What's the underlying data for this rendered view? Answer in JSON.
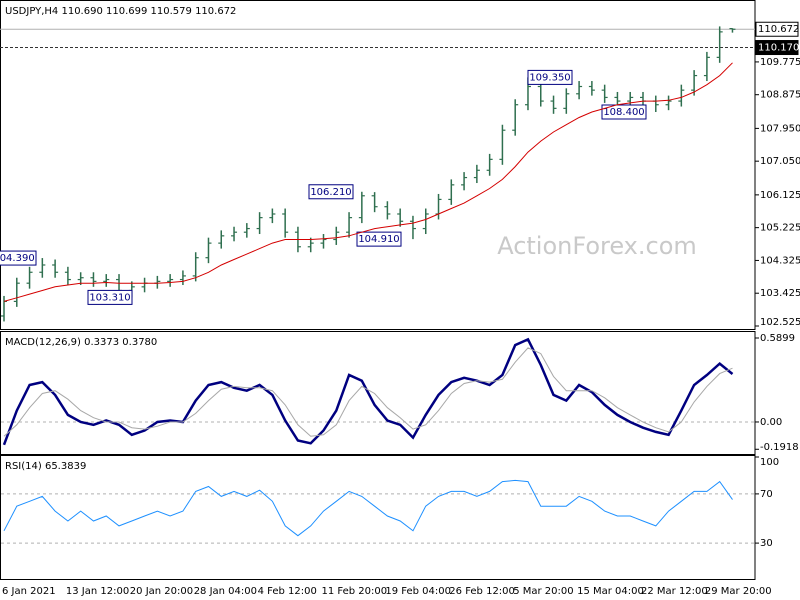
{
  "chart_data": [
    {
      "type": "ohlc",
      "title": "USDJPY,H4 110.690 110.699 110.579 110.672",
      "color": "#2f6f4f",
      "open": [
        102.8,
        103.2,
        103.7,
        104.0,
        104.2,
        104.0,
        103.8,
        103.85,
        103.75,
        103.8,
        103.5,
        103.6,
        103.7,
        103.75,
        103.8,
        103.9,
        104.4,
        104.8,
        105.0,
        105.1,
        105.2,
        105.5,
        105.6,
        105.1,
        104.7,
        104.8,
        104.9,
        105.1,
        105.5,
        106.1,
        105.8,
        105.6,
        105.4,
        105.2,
        105.6,
        106.0,
        106.4,
        106.6,
        106.8,
        107.1,
        107.9,
        108.6,
        109.1,
        108.7,
        108.5,
        108.9,
        109.1,
        109.0,
        108.8,
        108.7,
        108.8,
        108.7,
        108.6,
        108.7,
        109.0,
        109.4,
        109.9,
        110.69
      ],
      "high": [
        103.35,
        103.85,
        104.15,
        104.39,
        104.35,
        104.15,
        104.0,
        104.0,
        103.95,
        103.95,
        103.75,
        103.85,
        103.9,
        103.95,
        104.05,
        104.55,
        104.95,
        105.15,
        105.25,
        105.35,
        105.65,
        105.75,
        105.75,
        105.25,
        104.95,
        105.05,
        105.25,
        105.65,
        106.21,
        106.2,
        105.95,
        105.75,
        105.55,
        105.75,
        106.15,
        106.55,
        106.75,
        106.95,
        107.25,
        108.05,
        108.75,
        109.35,
        109.25,
        108.85,
        109.05,
        109.25,
        109.25,
        109.15,
        108.95,
        108.95,
        108.95,
        108.85,
        108.85,
        109.15,
        109.55,
        110.05,
        110.75,
        110.699
      ],
      "low": [
        102.65,
        103.05,
        103.55,
        103.85,
        103.85,
        103.65,
        103.65,
        103.6,
        103.6,
        103.35,
        103.31,
        103.45,
        103.55,
        103.6,
        103.65,
        103.75,
        104.25,
        104.65,
        104.85,
        104.95,
        105.05,
        105.35,
        104.95,
        104.55,
        104.55,
        104.65,
        104.75,
        104.95,
        105.35,
        105.65,
        105.45,
        105.25,
        104.91,
        105.05,
        105.45,
        105.85,
        106.25,
        106.45,
        106.65,
        106.95,
        107.75,
        108.45,
        108.55,
        108.35,
        108.35,
        108.75,
        108.85,
        108.65,
        108.55,
        108.55,
        108.55,
        108.4,
        108.45,
        108.55,
        108.85,
        109.25,
        109.75,
        110.579
      ],
      "close": [
        103.2,
        103.7,
        104.0,
        104.2,
        104.0,
        103.8,
        103.85,
        103.75,
        103.8,
        103.5,
        103.6,
        103.7,
        103.75,
        103.8,
        103.9,
        104.4,
        104.8,
        105.0,
        105.1,
        105.2,
        105.5,
        105.6,
        105.1,
        104.7,
        104.8,
        104.9,
        105.1,
        105.5,
        106.1,
        105.8,
        105.6,
        105.4,
        105.2,
        105.6,
        106.0,
        106.4,
        106.6,
        106.8,
        107.1,
        107.9,
        108.6,
        109.1,
        108.7,
        108.5,
        108.9,
        109.1,
        109.0,
        108.8,
        108.7,
        108.8,
        108.7,
        108.6,
        108.7,
        109.0,
        109.4,
        109.9,
        110.6,
        110.672
      ],
      "series": [
        {
          "color": "#d40000",
          "values": [
            103.2,
            103.3,
            103.4,
            103.5,
            103.6,
            103.65,
            103.7,
            103.7,
            103.72,
            103.7,
            103.7,
            103.7,
            103.7,
            103.72,
            103.75,
            103.85,
            104.0,
            104.2,
            104.35,
            104.5,
            104.65,
            104.8,
            104.9,
            104.9,
            104.9,
            104.92,
            104.95,
            105.0,
            105.1,
            105.2,
            105.25,
            105.3,
            105.35,
            105.45,
            105.6,
            105.75,
            105.9,
            106.1,
            106.3,
            106.55,
            106.9,
            107.3,
            107.6,
            107.85,
            108.05,
            108.25,
            108.4,
            108.5,
            108.6,
            108.65,
            108.7,
            108.7,
            108.72,
            108.8,
            108.95,
            109.15,
            109.4,
            109.75
          ]
        }
      ],
      "ylim": [
        102.415,
        111.42
      ],
      "yticks": [
        109.775,
        108.875,
        {
          "value": 107.95,
          "label": "107.950"
        },
        {
          "value": 107.05,
          "label": "107.050"
        },
        106.125,
        105.225,
        104.325,
        103.425,
        102.525
      ],
      "annotations": [
        {
          "value": 104.39,
          "label": "104.390"
        },
        {
          "value": 103.31,
          "label": "103.310"
        },
        {
          "value": 106.21,
          "label": "106.210"
        },
        {
          "value": 104.91,
          "label": "104.910"
        },
        {
          "value": 109.35,
          "label": "109.350"
        },
        {
          "value": 108.4,
          "label": "108.400"
        }
      ],
      "price_lines": [
        {
          "value": 110.672,
          "label": "110.672"
        },
        {
          "value": 110.17,
          "label": "110.170"
        }
      ],
      "watermark": "ActionForex.com"
    },
    {
      "type": "line",
      "title": "MACD(12,26,9) 0.3373 0.3780",
      "series": [
        {
          "color": "#000080",
          "values": [
            -0.16,
            0.08,
            0.26,
            0.28,
            0.19,
            0.05,
            0.0,
            -0.02,
            0.01,
            -0.02,
            -0.09,
            -0.06,
            0.0,
            0.01,
            0.0,
            0.15,
            0.26,
            0.28,
            0.24,
            0.22,
            0.26,
            0.19,
            0.01,
            -0.13,
            -0.15,
            -0.06,
            0.08,
            0.33,
            0.29,
            0.12,
            0.01,
            -0.02,
            -0.11,
            0.05,
            0.19,
            0.28,
            0.31,
            0.29,
            0.26,
            0.33,
            0.54,
            0.58,
            0.4,
            0.19,
            0.15,
            0.26,
            0.21,
            0.12,
            0.05,
            0.0,
            -0.04,
            -0.07,
            -0.09,
            0.08,
            0.26,
            0.33,
            0.41,
            0.3373
          ]
        },
        {
          "color": "#a8a8a8",
          "values": [
            -0.1,
            -0.02,
            0.1,
            0.2,
            0.22,
            0.16,
            0.08,
            0.03,
            0.0,
            0.0,
            -0.04,
            -0.05,
            -0.03,
            0.0,
            0.0,
            0.06,
            0.15,
            0.23,
            0.25,
            0.24,
            0.24,
            0.22,
            0.12,
            -0.02,
            -0.1,
            -0.09,
            -0.02,
            0.15,
            0.25,
            0.2,
            0.1,
            0.03,
            -0.05,
            -0.02,
            0.08,
            0.2,
            0.27,
            0.29,
            0.28,
            0.3,
            0.42,
            0.52,
            0.48,
            0.32,
            0.22,
            0.22,
            0.22,
            0.17,
            0.1,
            0.05,
            0.0,
            -0.04,
            -0.07,
            0.0,
            0.14,
            0.25,
            0.34,
            0.378
          ]
        }
      ],
      "ylim": [
        -0.232,
        0.625
      ],
      "yticks": [
        0.5899,
        {
          "value": 0,
          "label": "0.00"
        },
        -0.1918
      ],
      "levels": [
        0
      ]
    },
    {
      "type": "line",
      "title": "RSI(14) 65.3839",
      "series": [
        {
          "color": "#1e90ff",
          "values": [
            40,
            60,
            64,
            68,
            56,
            48,
            56,
            48,
            52,
            44,
            48,
            52,
            56,
            52,
            56,
            72,
            76,
            68,
            72,
            68,
            73,
            64,
            44,
            36,
            44,
            56,
            64,
            72,
            68,
            60,
            52,
            48,
            40,
            60,
            68,
            72,
            72,
            68,
            72,
            80,
            81,
            80,
            60,
            60,
            60,
            68,
            64,
            56,
            52,
            52,
            48,
            44,
            56,
            64,
            72,
            72,
            80,
            65.3839
          ]
        }
      ],
      "ylim": [
        0,
        100
      ],
      "yticks": [
        100,
        70,
        30
      ],
      "levels": [
        70,
        30
      ],
      "categories": [
        "6 Jan 2021",
        null,
        null,
        null,
        null,
        "13 Jan 12:00",
        null,
        null,
        null,
        null,
        "20 Jan 20:00",
        null,
        null,
        null,
        null,
        "28 Jan 04:00",
        null,
        null,
        null,
        null,
        "4 Feb 12:00",
        null,
        null,
        null,
        null,
        "11 Feb 20:00",
        null,
        null,
        null,
        null,
        "19 Feb 04:00",
        null,
        null,
        null,
        null,
        "26 Feb 12:00",
        null,
        null,
        null,
        null,
        "5 Mar 20:00",
        null,
        null,
        null,
        null,
        "15 Mar 04:00",
        null,
        null,
        null,
        null,
        "22 Mar 12:00",
        null,
        null,
        null,
        null,
        "29 Mar 20:00",
        null,
        null
      ]
    }
  ]
}
